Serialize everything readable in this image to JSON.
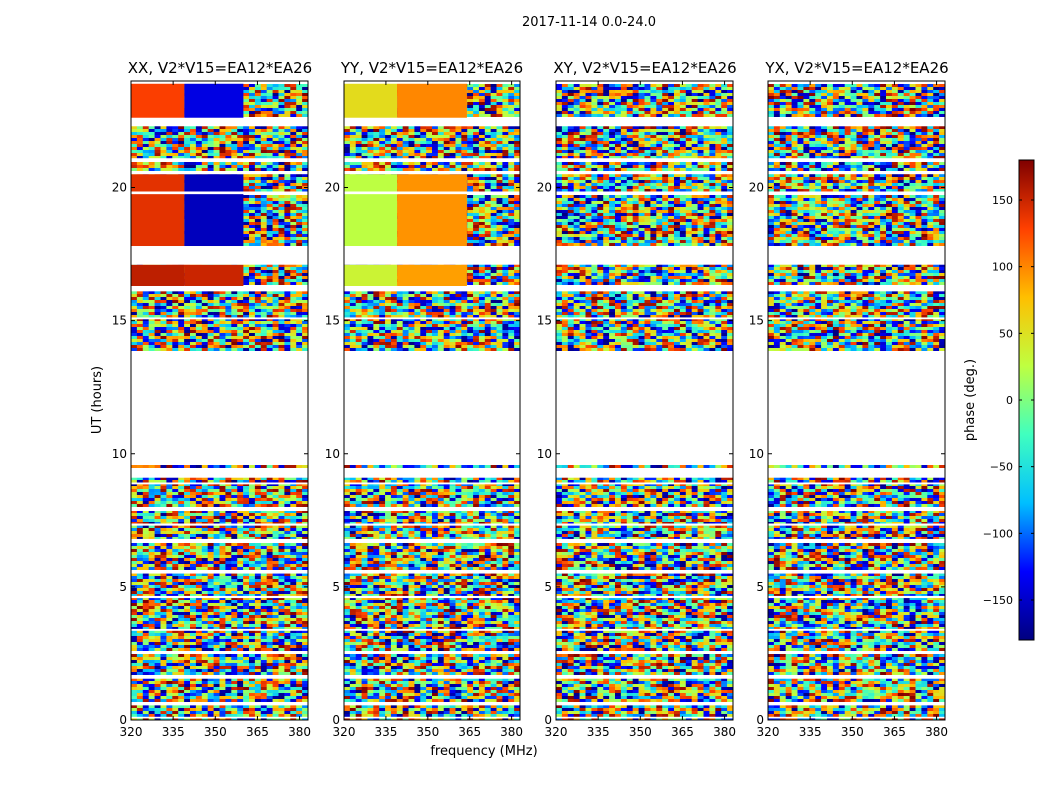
{
  "figure_title": "2017-11-14 0.0-24.0",
  "colormap": [
    "#00007f",
    "#0000ff",
    "#00bfff",
    "#40ffbf",
    "#bfff40",
    "#ffbf00",
    "#ff4000",
    "#7f0000"
  ],
  "chart_data": [
    {
      "type": "heatmap",
      "title": "XX, V2*V15=EA12*EA26",
      "xlabel": "frequency (MHz)",
      "ylabel": "UT (hours)",
      "x_ticks": [
        "320",
        "335",
        "350",
        "365",
        "380"
      ],
      "y_ticks": [
        "0",
        "5",
        "10",
        "15",
        "20"
      ],
      "xlim": [
        320,
        383
      ],
      "ylim": [
        0,
        24
      ],
      "z_unit": "phase (deg.)",
      "zlim": [
        -180,
        180
      ],
      "phase_segments": [
        {
          "t0": 16.3,
          "t1": 17.1,
          "f0": 320,
          "f1": 339,
          "phase": 155
        },
        {
          "t0": 16.3,
          "t1": 17.1,
          "f0": 339,
          "f1": 360,
          "phase": 150
        },
        {
          "t0": 17.8,
          "t1": 20.5,
          "f0": 320,
          "f1": 339,
          "phase": 140
        },
        {
          "t0": 17.8,
          "t1": 20.5,
          "f0": 339,
          "f1": 360,
          "phase": -155
        },
        {
          "t0": 22.6,
          "t1": 23.9,
          "f0": 320,
          "f1": 339,
          "phase": 130
        },
        {
          "t0": 22.6,
          "t1": 23.9,
          "f0": 339,
          "f1": 360,
          "phase": -140
        }
      ]
    },
    {
      "type": "heatmap",
      "title": "YY, V2*V15=EA12*EA26",
      "xlabel": "frequency (MHz)",
      "ylabel": "UT (hours)",
      "x_ticks": [
        "320",
        "335",
        "350",
        "365",
        "380"
      ],
      "y_ticks": [
        "0",
        "5",
        "10",
        "15",
        "20"
      ],
      "xlim": [
        320,
        383
      ],
      "ylim": [
        0,
        24
      ],
      "z_unit": "phase (deg.)",
      "zlim": [
        -180,
        180
      ],
      "phase_segments": [
        {
          "t0": 16.3,
          "t1": 17.1,
          "f0": 320,
          "f1": 339,
          "phase": 35
        },
        {
          "t0": 16.3,
          "t1": 17.1,
          "f0": 339,
          "f1": 364,
          "phase": 90
        },
        {
          "t0": 17.8,
          "t1": 20.5,
          "f0": 320,
          "f1": 339,
          "phase": 25
        },
        {
          "t0": 17.8,
          "t1": 20.5,
          "f0": 339,
          "f1": 364,
          "phase": 95
        },
        {
          "t0": 22.6,
          "t1": 23.9,
          "f0": 320,
          "f1": 339,
          "phase": 55
        },
        {
          "t0": 22.6,
          "t1": 23.9,
          "f0": 339,
          "f1": 364,
          "phase": 100
        }
      ]
    },
    {
      "type": "heatmap",
      "title": "XY, V2*V15=EA12*EA26",
      "xlabel": "frequency (MHz)",
      "ylabel": "UT (hours)",
      "x_ticks": [
        "320",
        "335",
        "350",
        "365",
        "380"
      ],
      "y_ticks": [
        "0",
        "5",
        "10",
        "15",
        "20"
      ],
      "xlim": [
        320,
        383
      ],
      "ylim": [
        0,
        24
      ],
      "z_unit": "phase (deg.)",
      "zlim": [
        -180,
        180
      ],
      "phase_segments": []
    },
    {
      "type": "heatmap",
      "title": "YX, V2*V15=EA12*EA26",
      "xlabel": "frequency (MHz)",
      "ylabel": "UT (hours)",
      "x_ticks": [
        "320",
        "335",
        "350",
        "365",
        "380"
      ],
      "y_ticks": [
        "0",
        "5",
        "10",
        "15",
        "20"
      ],
      "xlim": [
        320,
        383
      ],
      "ylim": [
        0,
        24
      ],
      "z_unit": "phase (deg.)",
      "zlim": [
        -180,
        180
      ],
      "phase_segments": []
    }
  ],
  "data_gaps_hours": [
    [
      0.06,
      0.12
    ],
    [
      0.55,
      0.65
    ],
    [
      1.55,
      1.68
    ],
    [
      2.48,
      2.56
    ],
    [
      3.35,
      3.42
    ],
    [
      4.58,
      4.66
    ],
    [
      5.5,
      5.58
    ],
    [
      6.7,
      6.8
    ],
    [
      7.3,
      7.38
    ],
    [
      7.85,
      7.95
    ],
    [
      8.85,
      8.92
    ],
    [
      9.1,
      9.45
    ],
    [
      9.62,
      13.85
    ],
    [
      15.05,
      15.12
    ],
    [
      16.1,
      16.3
    ],
    [
      17.1,
      17.8
    ],
    [
      19.75,
      19.85
    ],
    [
      20.5,
      20.62
    ],
    [
      21.0,
      21.1
    ],
    [
      22.3,
      22.62
    ],
    [
      23.9,
      24.0
    ]
  ],
  "colorbar": {
    "label": "phase (deg.)",
    "ticks": [
      "150",
      "100",
      "50",
      "0",
      "−50",
      "−100",
      "−150"
    ],
    "tick_values": [
      150,
      100,
      50,
      0,
      -50,
      -100,
      -150
    ],
    "range": [
      -180,
      180
    ]
  }
}
